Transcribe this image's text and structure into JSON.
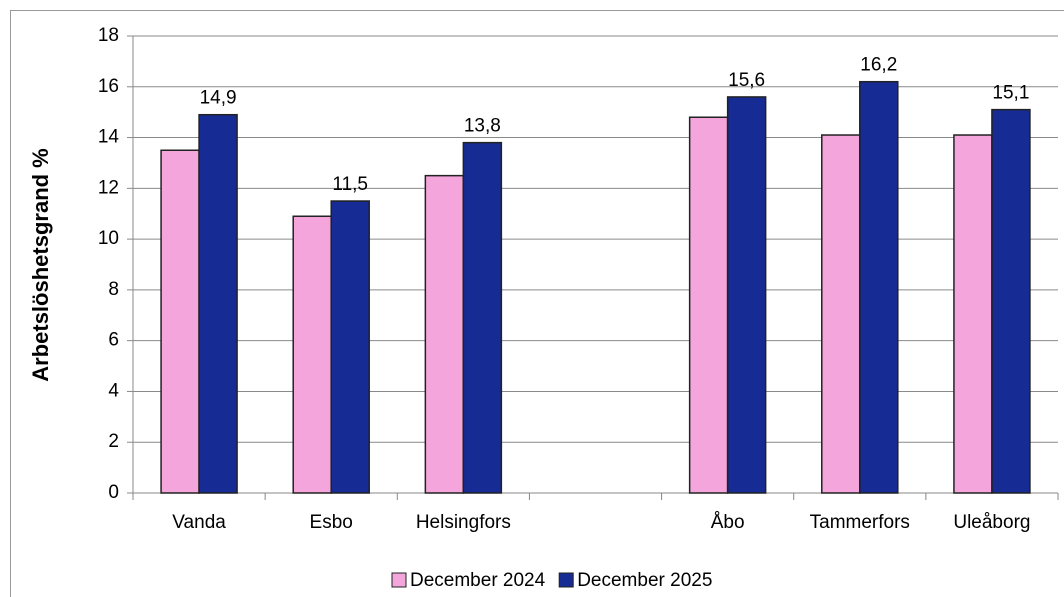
{
  "chart_data": {
    "type": "bar",
    "y_label": "Arbetslöshetsgrand %",
    "categories": [
      "Vanda",
      "Esbo",
      "Helsingfors",
      null,
      "Åbo",
      "Tammerfors",
      "Uleåborg"
    ],
    "series": [
      {
        "name": "December 2024",
        "color": "#f4a6dc",
        "values": [
          13.5,
          10.9,
          12.5,
          null,
          14.8,
          14.1,
          14.1
        ]
      },
      {
        "name": "December 2025",
        "color": "#172b94",
        "values": [
          14.9,
          11.5,
          13.8,
          null,
          15.6,
          16.2,
          15.1
        ],
        "value_labels": [
          "14,9",
          "11,5",
          "13,8",
          null,
          "15,6",
          "16,2",
          "15,1"
        ]
      }
    ],
    "ylim": [
      0,
      18
    ],
    "yticks": [
      0,
      2,
      4,
      6,
      8,
      10,
      12,
      14,
      16,
      18
    ],
    "grid": true,
    "legend": "bottom"
  }
}
